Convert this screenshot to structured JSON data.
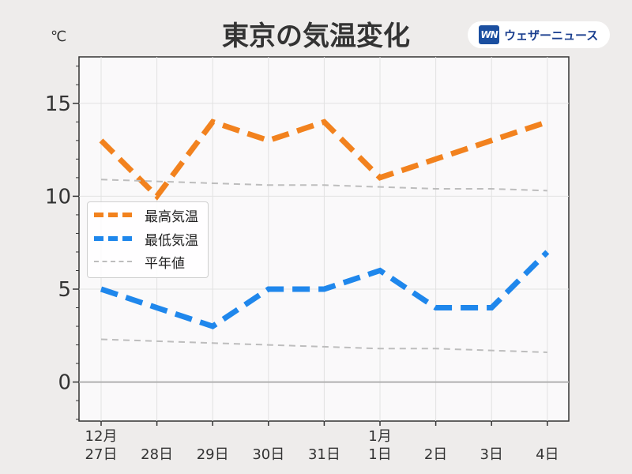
{
  "header": {
    "title": "東京の気温変化",
    "unit": "℃",
    "logo_mark": "WN",
    "logo_text": "ウェザーニュース"
  },
  "colors": {
    "background": "#eeeceb",
    "plot_background": "#faf9fa",
    "high": "#f2821e",
    "low": "#1f87ec",
    "normal": "#bdbdbd",
    "zero_line": "#b0b0b0"
  },
  "chart_data": {
    "type": "line",
    "title": "東京の気温変化",
    "ylabel": "℃",
    "categories": [
      "12月\n27日",
      "28日",
      "29日",
      "30日",
      "31日",
      "1月\n1日",
      "2日",
      "3日",
      "4日"
    ],
    "ylim": [
      -2.1,
      17.5
    ],
    "yticks": [
      0,
      5,
      10,
      15
    ],
    "grid": true,
    "legend_position": "left",
    "series": [
      {
        "name": "最高気温",
        "style": "dashed-thick",
        "color": "#f2821e",
        "values": [
          13,
          10,
          14,
          13,
          14,
          11,
          12,
          13,
          14
        ]
      },
      {
        "name": "最低気温",
        "style": "dashed-thick",
        "color": "#1f87ec",
        "values": [
          5,
          4,
          3,
          5,
          5,
          6,
          4,
          4,
          7
        ]
      },
      {
        "name": "平年値",
        "style": "dashed-thin",
        "color": "#bdbdbd",
        "values": [
          10.9,
          10.8,
          10.7,
          10.6,
          10.6,
          10.5,
          10.4,
          10.4,
          10.3
        ]
      },
      {
        "name": "平年値",
        "style": "dashed-thin",
        "color": "#bdbdbd",
        "values": [
          2.3,
          2.2,
          2.1,
          2.0,
          1.9,
          1.8,
          1.8,
          1.7,
          1.6
        ]
      }
    ]
  },
  "legend": {
    "items": [
      {
        "label": "最高気温",
        "color": "#f2821e",
        "style": "thick"
      },
      {
        "label": "最低気温",
        "color": "#1f87ec",
        "style": "thick"
      },
      {
        "label": "平年値",
        "color": "#bdbdbd",
        "style": "thin"
      }
    ]
  }
}
